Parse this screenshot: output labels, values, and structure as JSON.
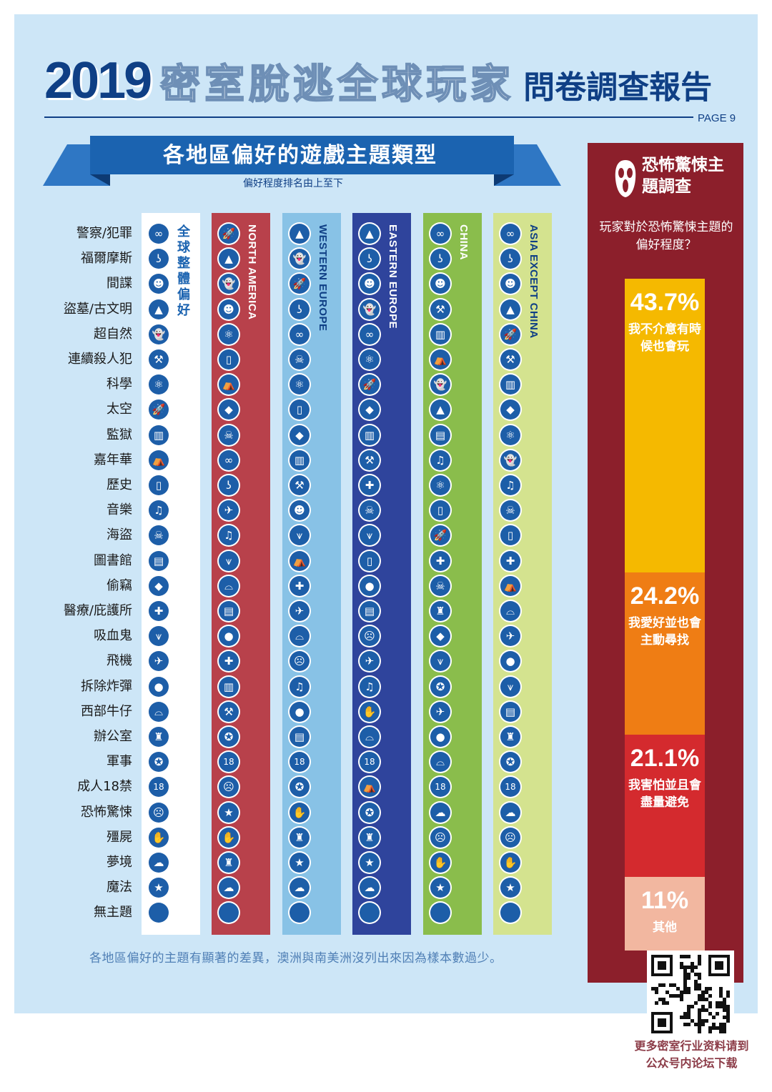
{
  "header": {
    "year": "2019",
    "title_mid": "密室脫逃全球玩家",
    "title_end": "問卷調查報告",
    "page": "PAGE 9"
  },
  "section": {
    "title": "各地區偏好的遊戲主題類型",
    "order_note": "偏好程度排名由上至下"
  },
  "chart_data": {
    "type": "table",
    "title": "各地區偏好的遊戲主題類型",
    "themes": [
      {
        "label": "警察/犯罪",
        "icon": "handcuffs-icon",
        "glyph": "∞"
      },
      {
        "label": "福爾摩斯",
        "icon": "pipe-icon",
        "glyph": "ʖ"
      },
      {
        "label": "間諜",
        "icon": "spy-icon",
        "glyph": "☻"
      },
      {
        "label": "盜墓/古文明",
        "icon": "pyramid-icon",
        "glyph": "▲"
      },
      {
        "label": "超自然",
        "icon": "ghost-icon",
        "glyph": "👻"
      },
      {
        "label": "連續殺人犯",
        "icon": "axe-icon",
        "glyph": "⚒"
      },
      {
        "label": "科學",
        "icon": "atom-icon",
        "glyph": "⚛"
      },
      {
        "label": "太空",
        "icon": "rocket-icon",
        "glyph": "🚀"
      },
      {
        "label": "監獄",
        "icon": "prison-bars-icon",
        "glyph": "▥"
      },
      {
        "label": "嘉年華",
        "icon": "circus-tent-icon",
        "glyph": "⛺"
      },
      {
        "label": "歷史",
        "icon": "scroll-icon",
        "glyph": "▯"
      },
      {
        "label": "音樂",
        "icon": "music-note-icon",
        "glyph": "♫"
      },
      {
        "label": "海盜",
        "icon": "pirate-hat-icon",
        "glyph": "☠"
      },
      {
        "label": "圖書館",
        "icon": "book-icon",
        "glyph": "▤"
      },
      {
        "label": "偷竊",
        "icon": "diamond-icon",
        "glyph": "◆"
      },
      {
        "label": "醫療/庇護所",
        "icon": "medical-cross-icon",
        "glyph": "✚"
      },
      {
        "label": "吸血鬼",
        "icon": "vampire-fangs-icon",
        "glyph": "⩛"
      },
      {
        "label": "飛機",
        "icon": "airplane-icon",
        "glyph": "✈"
      },
      {
        "label": "拆除炸彈",
        "icon": "bomb-icon",
        "glyph": "●"
      },
      {
        "label": "西部牛仔",
        "icon": "cowboy-hat-icon",
        "glyph": "⌓"
      },
      {
        "label": "辦公室",
        "icon": "office-chair-icon",
        "glyph": "♜"
      },
      {
        "label": "軍事",
        "icon": "military-badge-icon",
        "glyph": "✪"
      },
      {
        "label": "成人18禁",
        "icon": "adult-18-icon",
        "glyph": "18"
      },
      {
        "label": "恐怖驚悚",
        "icon": "scream-mask-icon",
        "glyph": "☹"
      },
      {
        "label": "殭屍",
        "icon": "zombie-hand-icon",
        "glyph": "✋"
      },
      {
        "label": "夢境",
        "icon": "cloud-icon",
        "glyph": "☁"
      },
      {
        "label": "魔法",
        "icon": "wizard-hat-icon",
        "glyph": "★"
      },
      {
        "label": "無主題",
        "icon": "blank-icon",
        "glyph": ""
      }
    ],
    "regions": [
      {
        "name": "全球整體偏好",
        "bg": "#ffffff",
        "text_color": "#1b63b0",
        "ranking": [
          "警察/犯罪",
          "福爾摩斯",
          "間諜",
          "盜墓/古文明",
          "超自然",
          "連續殺人犯",
          "科學",
          "太空",
          "監獄",
          "嘉年華",
          "歷史",
          "音樂",
          "海盜",
          "圖書館",
          "偷竊",
          "醫療/庇護所",
          "吸血鬼",
          "飛機",
          "拆除炸彈",
          "西部牛仔",
          "辦公室",
          "軍事",
          "成人18禁",
          "恐怖驚悚",
          "殭屍",
          "夢境",
          "魔法",
          "無主題"
        ]
      },
      {
        "name": "NORTH AMERICA",
        "bg": "#b8414b",
        "text_color": "#ffffff",
        "ranking": [
          "太空",
          "盜墓/古文明",
          "超自然",
          "間諜",
          "科學",
          "歷史",
          "嘉年華",
          "偷竊",
          "海盜",
          "警察/犯罪",
          "福爾摩斯",
          "飛機",
          "音樂",
          "吸血鬼",
          "西部牛仔",
          "圖書館",
          "拆除炸彈",
          "醫療/庇護所",
          "監獄",
          "連續殺人犯",
          "軍事",
          "成人18禁",
          "恐怖驚悚",
          "魔法",
          "殭屍",
          "辦公室",
          "夢境",
          "無主題"
        ]
      },
      {
        "name": "WESTERN EUROPE",
        "bg": "#88c2e6",
        "text_color": "#0f3f85",
        "ranking": [
          "盜墓/古文明",
          "超自然",
          "太空",
          "福爾摩斯",
          "警察/犯罪",
          "海盜",
          "科學",
          "歷史",
          "偷竊",
          "監獄",
          "連續殺人犯",
          "間諜",
          "吸血鬼",
          "嘉年華",
          "醫療/庇護所",
          "飛機",
          "西部牛仔",
          "恐怖驚悚",
          "音樂",
          "拆除炸彈",
          "圖書館",
          "成人18禁",
          "軍事",
          "殭屍",
          "辦公室",
          "魔法",
          "夢境",
          "無主題"
        ]
      },
      {
        "name": "EASTERN EUROPE",
        "bg": "#2f449c",
        "text_color": "#ffffff",
        "ranking": [
          "盜墓/古文明",
          "福爾摩斯",
          "間諜",
          "超自然",
          "警察/犯罪",
          "科學",
          "太空",
          "偷竊",
          "監獄",
          "連續殺人犯",
          "醫療/庇護所",
          "海盜",
          "吸血鬼",
          "歷史",
          "拆除炸彈",
          "圖書館",
          "恐怖驚悚",
          "飛機",
          "音樂",
          "殭屍",
          "西部牛仔",
          "成人18禁",
          "嘉年華",
          "軍事",
          "辦公室",
          "魔法",
          "夢境",
          "無主題"
        ]
      },
      {
        "name": "CHINA",
        "bg": "#8abd4c",
        "text_color": "#ffffff",
        "ranking": [
          "警察/犯罪",
          "福爾摩斯",
          "間諜",
          "連續殺人犯",
          "監獄",
          "嘉年華",
          "超自然",
          "盜墓/古文明",
          "圖書館",
          "音樂",
          "科學",
          "歷史",
          "太空",
          "醫療/庇護所",
          "海盜",
          "辦公室",
          "偷竊",
          "吸血鬼",
          "軍事",
          "飛機",
          "拆除炸彈",
          "西部牛仔",
          "成人18禁",
          "夢境",
          "恐怖驚悚",
          "殭屍",
          "魔法",
          "無主題"
        ]
      },
      {
        "name": "ASIA EXCEPT CHINA",
        "bg": "#d4e38f",
        "text_color": "#0f3f85",
        "ranking": [
          "警察/犯罪",
          "福爾摩斯",
          "間諜",
          "盜墓/古文明",
          "太空",
          "連續殺人犯",
          "監獄",
          "偷竊",
          "科學",
          "超自然",
          "音樂",
          "海盜",
          "歷史",
          "醫療/庇護所",
          "嘉年華",
          "西部牛仔",
          "飛機",
          "拆除炸彈",
          "吸血鬼",
          "圖書館",
          "辦公室",
          "軍事",
          "成人18禁",
          "夢境",
          "恐怖驚悚",
          "殭屍",
          "魔法",
          "無主題"
        ]
      }
    ]
  },
  "horror": {
    "title": "恐怖驚悚主題調查",
    "question": "玩家對於恐怖驚悚主題的偏好程度？",
    "segments": [
      {
        "pct": "43.7%",
        "value": 43.7,
        "label": "我不介意有時候也會玩",
        "color": "#f5b900"
      },
      {
        "pct": "24.2%",
        "value": 24.2,
        "label": "我愛好並也會主動尋找",
        "color": "#ef7d14"
      },
      {
        "pct": "21.1%",
        "value": 21.1,
        "label": "我害怕並且會盡量避免",
        "color": "#d42a2e"
      },
      {
        "pct": "11%",
        "value": 11,
        "label": "其他",
        "color": "#f2b7a0"
      }
    ]
  },
  "footnote": "各地區偏好的主題有顯著的差異，澳洲與南美洲沒列出來因為樣本數過少。",
  "qr_note": "更多密室行业资料请到公众号内论坛下载",
  "colors": {
    "navy": "#0f3f85",
    "ribbon": "#1b63b0",
    "poster_bg": "#cde6f7",
    "horror_panel": "#8c1f2b"
  }
}
